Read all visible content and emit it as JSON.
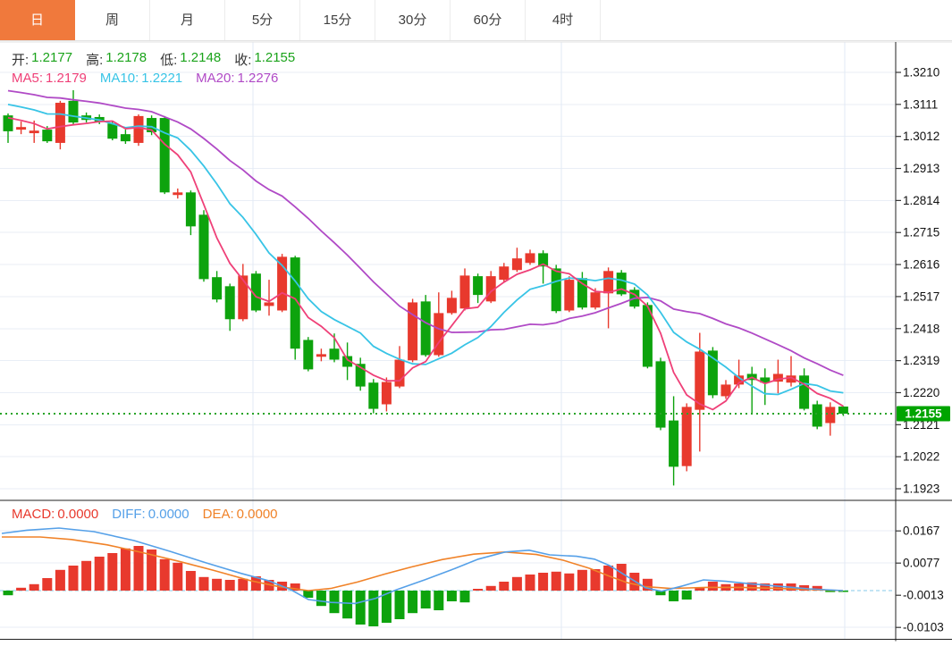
{
  "tabs": {
    "items": [
      {
        "label": "日",
        "active": true
      },
      {
        "label": "周",
        "active": false
      },
      {
        "label": "月",
        "active": false
      },
      {
        "label": "5分",
        "active": false
      },
      {
        "label": "15分",
        "active": false
      },
      {
        "label": "30分",
        "active": false
      },
      {
        "label": "60分",
        "active": false
      },
      {
        "label": "4时",
        "active": false
      }
    ]
  },
  "quote_bar": {
    "open_label": "开:",
    "open_value": "1.2177",
    "high_label": "高:",
    "high_value": "1.2178",
    "low_label": "低:",
    "low_value": "1.2148",
    "close_label": "收:",
    "close_value": "1.2155"
  },
  "ma_bar": {
    "ma5_label": "MA5:",
    "ma5_value": "1.2179",
    "ma10_label": "MA10:",
    "ma10_value": "1.2221",
    "ma20_label": "MA20:",
    "ma20_value": "1.2276"
  },
  "macd_bar": {
    "macd_label": "MACD:",
    "macd_value": "0.0000",
    "diff_label": "DIFF:",
    "diff_value": "0.0000",
    "dea_label": "DEA:",
    "dea_value": "0.0000"
  },
  "colors": {
    "up": "#e8392d",
    "down": "#0da30d",
    "ma5": "#ef4078",
    "ma10": "#38c4e6",
    "ma20": "#b04ac6",
    "diff": "#55a0e8",
    "dea": "#f08228",
    "active_tab": "#f0793c",
    "quote_value": "#1aa31a",
    "price_line": "#28a428",
    "price_tag_bg": "#00a400",
    "grid": "#e9eef6",
    "vgrid": "#e2e9f4",
    "axis": "#222222",
    "baseline_dash": "#aedcf0"
  },
  "chart_data": [
    {
      "type": "candlestick",
      "panel": "main",
      "y_ticks": [
        "1.3210",
        "1.3111",
        "1.3012",
        "1.2913",
        "1.2814",
        "1.2715",
        "1.2616",
        "1.2517",
        "1.2418",
        "1.2319",
        "1.2220",
        "1.2121",
        "1.2022",
        "1.1923"
      ],
      "ylim": [
        1.1923,
        1.321
      ],
      "current_price": 1.2155,
      "current_price_label": "1.2155",
      "ma_periods": [
        5,
        10,
        20
      ],
      "ma_latest": {
        "ma5": 1.2179,
        "ma10": 1.2221,
        "ma20": 1.2276
      },
      "ohlc_latest": {
        "open": 1.2177,
        "high": 1.2178,
        "low": 1.2148,
        "close": 1.2155
      },
      "candles": [
        [
          1.3077,
          1.3083,
          1.2992,
          1.3028
        ],
        [
          1.3033,
          1.3058,
          1.3019,
          1.3041
        ],
        [
          1.3022,
          1.3061,
          1.2992,
          1.303
        ],
        [
          1.3033,
          1.3044,
          1.2992,
          1.2997
        ],
        [
          1.2992,
          1.3122,
          1.2972,
          1.3116
        ],
        [
          1.3122,
          1.3155,
          1.3047,
          1.3055
        ],
        [
          1.3077,
          1.3086,
          1.3055,
          1.3063
        ],
        [
          1.3072,
          1.308,
          1.305,
          1.3058
        ],
        [
          1.3052,
          1.3058,
          1.3,
          1.3005
        ],
        [
          1.3019,
          1.3033,
          1.2989,
          1.2997
        ],
        [
          1.2992,
          1.308,
          1.2983,
          1.3075
        ],
        [
          1.3069,
          1.3077,
          1.3016,
          1.3025
        ],
        [
          1.3069,
          1.3075,
          1.2834,
          1.2839
        ],
        [
          1.2831,
          1.2851,
          1.282,
          1.2839
        ],
        [
          1.2839,
          1.2845,
          1.2707,
          1.2734
        ],
        [
          1.277,
          1.2784,
          1.2563,
          1.2571
        ],
        [
          1.2577,
          1.2596,
          1.2499,
          1.2508
        ],
        [
          1.2549,
          1.2557,
          1.2411,
          1.2447
        ],
        [
          1.2447,
          1.2618,
          1.2441,
          1.2582
        ],
        [
          1.2588,
          1.2596,
          1.2469,
          1.2474
        ],
        [
          1.2488,
          1.2569,
          1.2458,
          1.2499
        ],
        [
          1.2474,
          1.2649,
          1.2469,
          1.264
        ],
        [
          1.2638,
          1.2643,
          1.2322,
          1.2356
        ],
        [
          1.2383,
          1.2392,
          1.2286,
          1.2292
        ],
        [
          1.2331,
          1.2356,
          1.2317,
          1.2339
        ],
        [
          1.2356,
          1.2403,
          1.2314,
          1.2322
        ],
        [
          1.2333,
          1.2375,
          1.2259,
          1.23
        ],
        [
          1.2309,
          1.2328,
          1.2226,
          1.2239
        ],
        [
          1.2251,
          1.2262,
          1.2156,
          1.217
        ],
        [
          1.2184,
          1.2267,
          1.2162,
          1.2253
        ],
        [
          1.2239,
          1.2364,
          1.2234,
          1.2322
        ],
        [
          1.232,
          1.251,
          1.2314,
          1.2499
        ],
        [
          1.2502,
          1.2522,
          1.2331,
          1.2336
        ],
        [
          1.2336,
          1.253,
          1.2331,
          1.2466
        ],
        [
          1.2466,
          1.2535,
          1.2461,
          1.2513
        ],
        [
          1.248,
          1.2604,
          1.2474,
          1.2582
        ],
        [
          1.258,
          1.2588,
          1.2497,
          1.2522
        ],
        [
          1.2502,
          1.2596,
          1.2497,
          1.258
        ],
        [
          1.2569,
          1.2621,
          1.2563,
          1.261
        ],
        [
          1.2599,
          1.2668,
          1.2593,
          1.2635
        ],
        [
          1.2621,
          1.2662,
          1.2615,
          1.2651
        ],
        [
          1.2651,
          1.266,
          1.2557,
          1.261
        ],
        [
          1.2604,
          1.2615,
          1.2466,
          1.2472
        ],
        [
          1.2474,
          1.258,
          1.2469,
          1.2569
        ],
        [
          1.2574,
          1.2593,
          1.2477,
          1.2483
        ],
        [
          1.2483,
          1.2543,
          1.2477,
          1.253
        ],
        [
          1.2527,
          1.2607,
          1.2419,
          1.2596
        ],
        [
          1.2591,
          1.2599,
          1.2519,
          1.2524
        ],
        [
          1.2538,
          1.2546,
          1.248,
          1.2486
        ],
        [
          1.2491,
          1.2499,
          1.2295,
          1.23
        ],
        [
          1.2317,
          1.2328,
          1.2104,
          1.2112
        ],
        [
          1.2134,
          1.2209,
          1.1933,
          1.1991
        ],
        [
          1.1993,
          1.2187,
          1.1977,
          1.2176
        ],
        [
          1.2167,
          1.2405,
          1.2038,
          1.2347
        ],
        [
          1.235,
          1.2361,
          1.2203,
          1.2212
        ],
        [
          1.2209,
          1.2259,
          1.2201,
          1.2245
        ],
        [
          1.2245,
          1.2322,
          1.2234,
          1.2273
        ],
        [
          1.2278,
          1.23,
          1.2156,
          1.2259
        ],
        [
          1.2267,
          1.2295,
          1.2182,
          1.2251
        ],
        [
          1.2254,
          1.2322,
          1.2218,
          1.2278
        ],
        [
          1.2251,
          1.2333,
          1.2239,
          1.2273
        ],
        [
          1.2273,
          1.2295,
          1.2165,
          1.217
        ],
        [
          1.2184,
          1.2195,
          1.2107,
          1.2115
        ],
        [
          1.2126,
          1.219,
          1.2087,
          1.2176
        ],
        [
          1.2177,
          1.2178,
          1.2148,
          1.2155
        ]
      ]
    },
    {
      "type": "macd",
      "panel": "sub",
      "y_ticks": [
        "0.0167",
        "0.0077",
        "-0.0013",
        "-0.0103"
      ],
      "values": {
        "macd": 0.0,
        "diff": 0.0,
        "dea": 0.0
      },
      "histogram": [
        -0.0013,
        0.0008,
        0.0018,
        0.0035,
        0.0058,
        0.007,
        0.0083,
        0.0095,
        0.0105,
        0.0118,
        0.0125,
        0.0115,
        0.0088,
        0.0078,
        0.0055,
        0.0038,
        0.0033,
        0.003,
        0.0033,
        0.004,
        0.003,
        0.0025,
        0.002,
        -0.002,
        -0.0043,
        -0.0063,
        -0.0078,
        -0.0095,
        -0.01,
        -0.009,
        -0.008,
        -0.0063,
        -0.005,
        -0.0055,
        -0.003,
        -0.0033,
        0.0005,
        0.0013,
        0.0025,
        0.0038,
        0.0045,
        0.005,
        0.0053,
        0.0048,
        0.0058,
        0.006,
        0.007,
        0.0075,
        0.005,
        0.0033,
        -0.0013,
        -0.003,
        -0.0025,
        0.0008,
        0.0025,
        0.0018,
        0.002,
        0.0023,
        0.002,
        0.002,
        0.002,
        0.0015,
        0.0013,
        -0.0004,
        -0.0003
      ],
      "diff_line": [
        [
          2,
          0.016
        ],
        [
          30,
          0.0169
        ],
        [
          66,
          0.0175
        ],
        [
          105,
          0.0165
        ],
        [
          150,
          0.014
        ],
        [
          190,
          0.011
        ],
        [
          230,
          0.0078
        ],
        [
          270,
          0.0048
        ],
        [
          300,
          0.0028
        ],
        [
          325,
          0.0003
        ],
        [
          345,
          -0.0025
        ],
        [
          370,
          -0.0033
        ],
        [
          397,
          -0.0036
        ],
        [
          420,
          -0.0022
        ],
        [
          443,
          0.0002
        ],
        [
          475,
          0.003
        ],
        [
          505,
          0.0058
        ],
        [
          535,
          0.0088
        ],
        [
          565,
          0.0108
        ],
        [
          592,
          0.0113
        ],
        [
          615,
          0.01
        ],
        [
          645,
          0.0096
        ],
        [
          665,
          0.0088
        ],
        [
          682,
          0.007
        ],
        [
          700,
          0.0042
        ],
        [
          722,
          0.0008
        ],
        [
          740,
          -0.0002
        ],
        [
          762,
          0.0012
        ],
        [
          787,
          0.003
        ],
        [
          812,
          0.0026
        ],
        [
          840,
          0.0019
        ],
        [
          872,
          0.0012
        ],
        [
          905,
          0.0005
        ],
        [
          943,
          0.0
        ]
      ],
      "dea_line": [
        [
          2,
          0.015
        ],
        [
          45,
          0.015
        ],
        [
          80,
          0.0143
        ],
        [
          120,
          0.0128
        ],
        [
          160,
          0.0106
        ],
        [
          200,
          0.0082
        ],
        [
          240,
          0.0056
        ],
        [
          280,
          0.0028
        ],
        [
          310,
          0.0012
        ],
        [
          345,
          0.0
        ],
        [
          370,
          0.0006
        ],
        [
          400,
          0.0024
        ],
        [
          430,
          0.0046
        ],
        [
          460,
          0.0066
        ],
        [
          495,
          0.0087
        ],
        [
          530,
          0.0102
        ],
        [
          565,
          0.0108
        ],
        [
          600,
          0.0101
        ],
        [
          630,
          0.0085
        ],
        [
          660,
          0.0062
        ],
        [
          682,
          0.004
        ],
        [
          702,
          0.0022
        ],
        [
          722,
          0.0011
        ],
        [
          750,
          0.0006
        ],
        [
          790,
          0.0009
        ],
        [
          830,
          0.0009
        ],
        [
          870,
          0.0006
        ],
        [
          910,
          0.0003
        ],
        [
          943,
          0.0
        ]
      ]
    }
  ]
}
